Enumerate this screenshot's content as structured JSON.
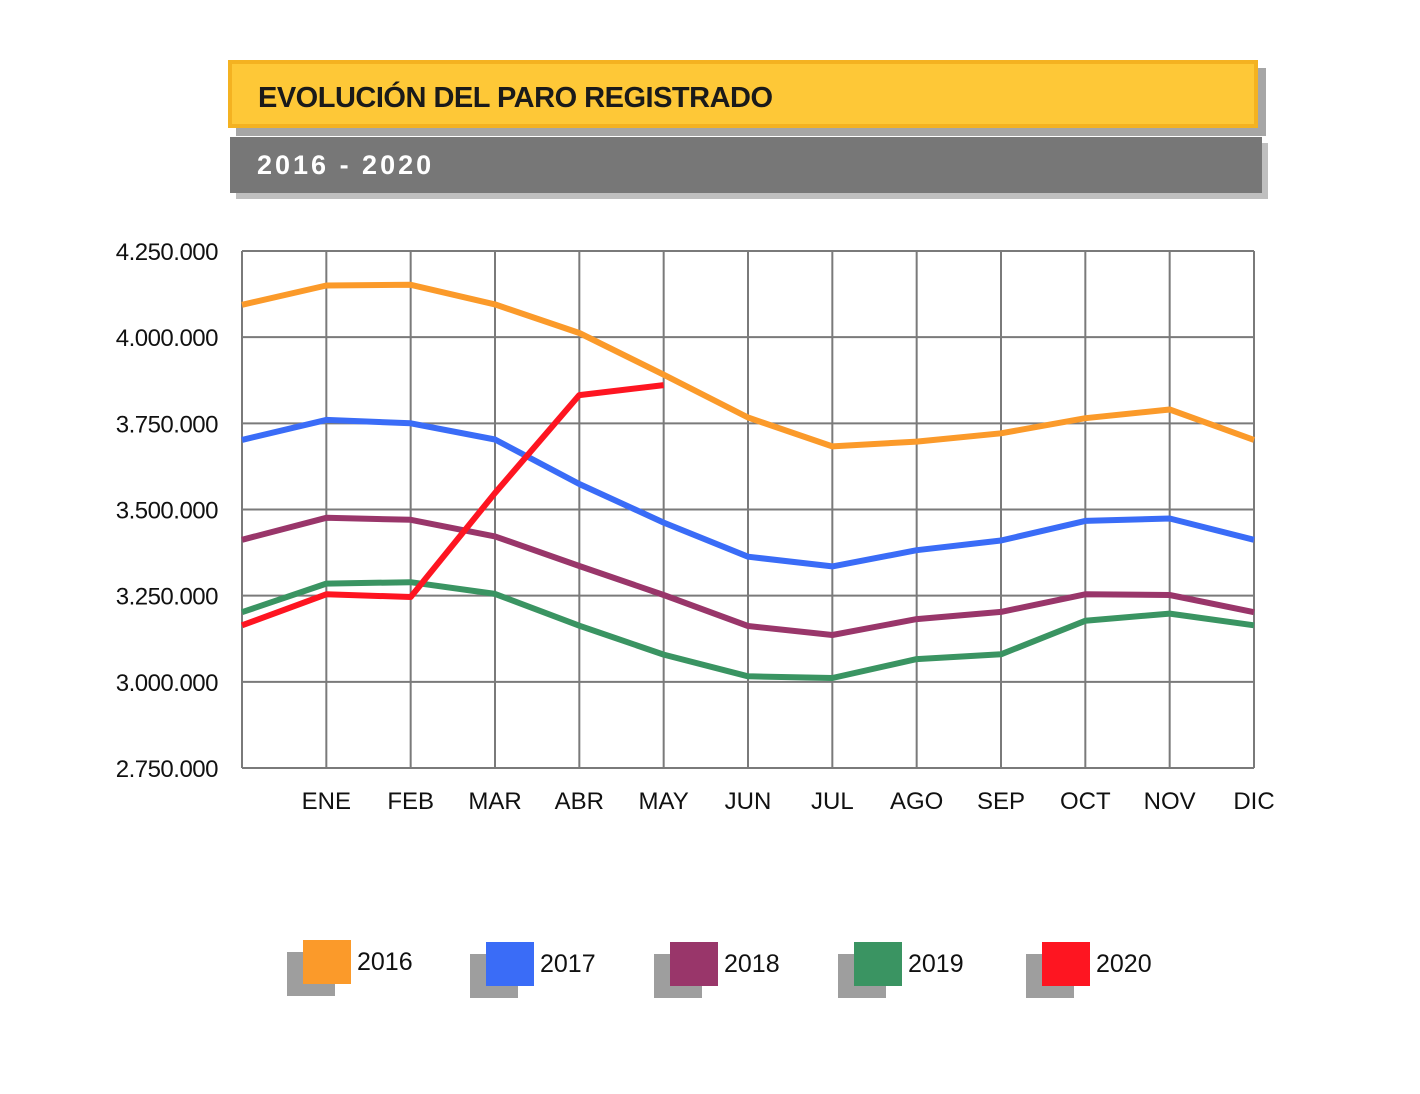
{
  "header": {
    "title": "EVOLUCIÓN DEL PARO REGISTRADO",
    "subtitle": "2016 - 2020",
    "title_color": "#fec837",
    "subtitle_color": "#777777"
  },
  "chart_data": {
    "type": "line",
    "title": "EVOLUCIÓN DEL PARO REGISTRADO",
    "subtitle": "2016 - 2020",
    "xlabel": "",
    "ylabel": "",
    "categories": [
      "",
      "ENE",
      "FEB",
      "MAR",
      "ABR",
      "MAY",
      "JUN",
      "JUL",
      "AGO",
      "SEP",
      "OCT",
      "NOV",
      "DIC"
    ],
    "y_ticks": [
      "4.250.000",
      "4.000.000",
      "3.750.000",
      "3.500.000",
      "3.250.000",
      "3.000.000",
      "2.750.000"
    ],
    "y_tick_values": [
      4250000,
      4000000,
      3750000,
      3500000,
      3250000,
      3000000,
      2750000
    ],
    "ylim": [
      2750000,
      4250000
    ],
    "grid": true,
    "legend_position": "bottom",
    "series": [
      {
        "name": "2016",
        "color": "#fb9a2a",
        "values": [
          4094000,
          4150000,
          4152000,
          4095000,
          4012000,
          3891000,
          3767000,
          3683000,
          3697000,
          3721000,
          3765000,
          3790000,
          3702000
        ]
      },
      {
        "name": "2017",
        "color": "#3a6cf7",
        "values": [
          3702000,
          3760000,
          3750000,
          3703000,
          3574000,
          3462000,
          3363000,
          3335000,
          3382000,
          3410000,
          3467000,
          3474000,
          3412000
        ]
      },
      {
        "name": "2018",
        "color": "#99366a",
        "values": [
          3412000,
          3476000,
          3470000,
          3422000,
          3336000,
          3252000,
          3162000,
          3136000,
          3182000,
          3203000,
          3254000,
          3252000,
          3202000
        ]
      },
      {
        "name": "2019",
        "color": "#3a9462",
        "values": [
          3202000,
          3285000,
          3289000,
          3255000,
          3163000,
          3079000,
          3016000,
          3011000,
          3066000,
          3080000,
          3177000,
          3198000,
          3164000
        ]
      },
      {
        "name": "2020",
        "color": "#fe1521",
        "values": [
          3164000,
          3254000,
          3246000,
          3548000,
          3832000,
          3861000,
          null,
          null,
          null,
          null,
          null,
          null,
          null
        ]
      }
    ]
  }
}
